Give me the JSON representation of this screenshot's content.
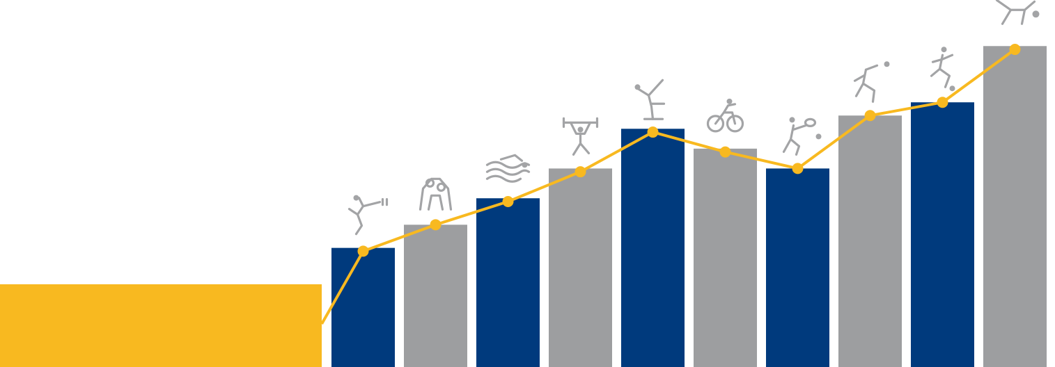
{
  "chart_data": {
    "type": "bar",
    "title": "",
    "xlabel": "",
    "ylabel": "",
    "grid": false,
    "legend": "none",
    "ylim": [
      0,
      100
    ],
    "categories": [
      "",
      "",
      "",
      "",
      "",
      "",
      "",
      "",
      "",
      ""
    ],
    "icons": [
      "fencing-icon",
      "wrestling-icon",
      "swimming-icon",
      "weightlifting-icon",
      "gymnastics-icon",
      "cycling-icon",
      "tennis-icon",
      "volleyball-icon",
      "football-icon",
      "handball-icon"
    ],
    "series": [
      {
        "type": "bar",
        "values": [
          36,
          43,
          51,
          60,
          72,
          66,
          60,
          76,
          80,
          97
        ],
        "colors": [
          "#003a7d",
          "#9d9e a0",
          "#003a7d",
          "#9d9ea0",
          "#003a7d",
          "#9d9ea0",
          "#003a7d",
          "#9d9ea0",
          "#003a7d",
          "#9d9ea0"
        ]
      },
      {
        "type": "line",
        "values": [
          35,
          43,
          50,
          59,
          71,
          65,
          60,
          76,
          80,
          96
        ],
        "color": "#f8b920"
      }
    ],
    "colors": {
      "bar_primary": "#003a7d",
      "bar_secondary": "#9d9ea0",
      "line": "#f8b920",
      "block": "#f8b920",
      "icon": "#a3a4a6"
    }
  }
}
